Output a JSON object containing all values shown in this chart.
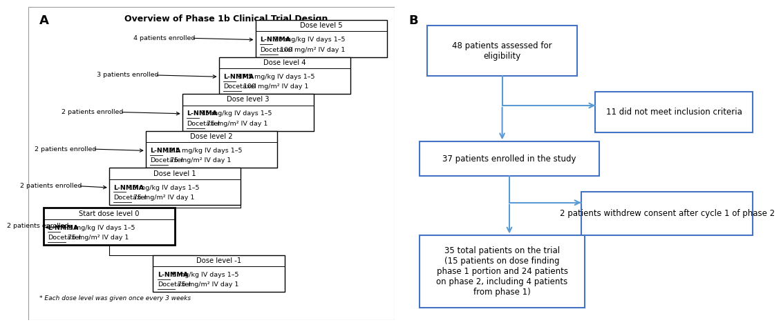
{
  "title_A": "Overview of Phase 1b Clinical Trial Design",
  "panel_A_label": "A",
  "panel_B_label": "B",
  "dose_levels": [
    {
      "level_label": "Dose level 5",
      "lnmma_bold": "L-NMMA",
      "lnmma_rest": " 20 mg/kg IV days 1–5",
      "doc_bold": "Docetaxel",
      "doc_rest": " 100 mg/m² IV day 1",
      "enrolled": "4 patients enrolled",
      "bold_border": false
    },
    {
      "level_label": "Dose level 4",
      "lnmma_bold": "L-NMMA",
      "lnmma_rest": " 17.5 mg/kg IV days 1–5",
      "doc_bold": "Docetaxel",
      "doc_rest": " 100 mg/m² IV day 1",
      "enrolled": "3 patients enrolled",
      "bold_border": false
    },
    {
      "level_label": "Dose level 3",
      "lnmma_bold": "L-NMMA",
      "lnmma_rest": " 15 mg/kg IV days 1–5",
      "doc_bold": "Docetaxel",
      "doc_rest": " 75 mg/m² IV day 1",
      "enrolled": "2 patients enrolled",
      "bold_border": false
    },
    {
      "level_label": "Dose level 2",
      "lnmma_bold": "L-NMMA",
      "lnmma_rest": " 12.5 mg/kg IV days 1–5",
      "doc_bold": "Docetaxel",
      "doc_rest": " 75 mg/m² IV day 1",
      "enrolled": "2 patients enrolled",
      "bold_border": false
    },
    {
      "level_label": "Dose level 1",
      "lnmma_bold": "L-NMMA",
      "lnmma_rest": " 10 mg/kg IV days 1–5",
      "doc_bold": "Docetaxel",
      "doc_rest": " 75 mg/m² IV day 1",
      "enrolled": "2 patients enrolled",
      "bold_border": false
    },
    {
      "level_label": "Start dose level 0",
      "lnmma_bold": "L-NMMA",
      "lnmma_rest": " 7.5 mg/kg IV days 1–5",
      "doc_bold": "Docetaxel",
      "doc_rest": " 75 mg/m² IV day 1",
      "enrolled": "2 patients enrolled",
      "bold_border": true
    },
    {
      "level_label": "Dose level -1",
      "lnmma_bold": "L-NMMA",
      "lnmma_rest": " 5 mg/kg IV days 1–5",
      "doc_bold": "Docetaxel",
      "doc_rest": " 75 mg/m² IV day 1",
      "enrolled": "",
      "bold_border": false
    }
  ],
  "footnote": "* Each dose level was given once every 3 weeks",
  "flow_box_color": "#4472C4",
  "flow_arrow_color": "#5B9BD5",
  "bg_color": "#ffffff"
}
